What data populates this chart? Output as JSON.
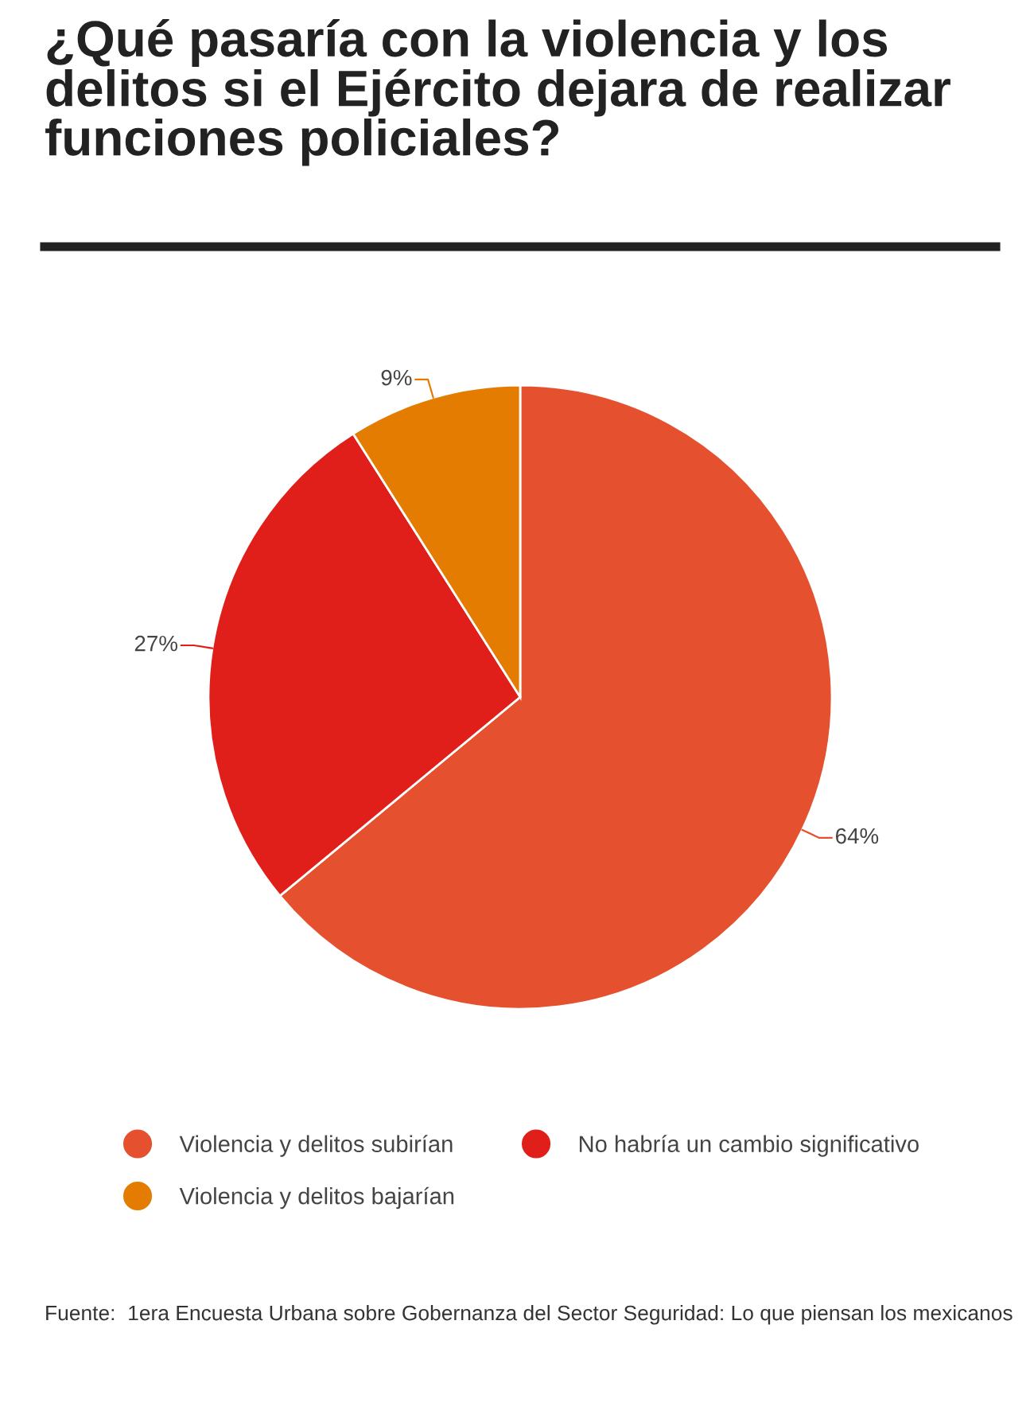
{
  "chart_data": {
    "type": "pie",
    "title": "¿Qué pasaría con la violencia y los delitos si el Ejército dejara de realizar funciones policiales?",
    "categories": [
      "Violencia y delitos subirían",
      "No habría un cambio significativo",
      "Violencia y delitos bajarían"
    ],
    "values": [
      64,
      27,
      9
    ],
    "value_labels": [
      "64%",
      "27%",
      "9%"
    ],
    "colors": [
      "#e5502e",
      "#e01f1a",
      "#e37c00"
    ],
    "legend": "bottom",
    "annotations": [
      "Fuente:  1era Encuesta Urbana sobre Gobernanza del Sector Seguridad: Lo que piensan los mexicanos"
    ]
  }
}
